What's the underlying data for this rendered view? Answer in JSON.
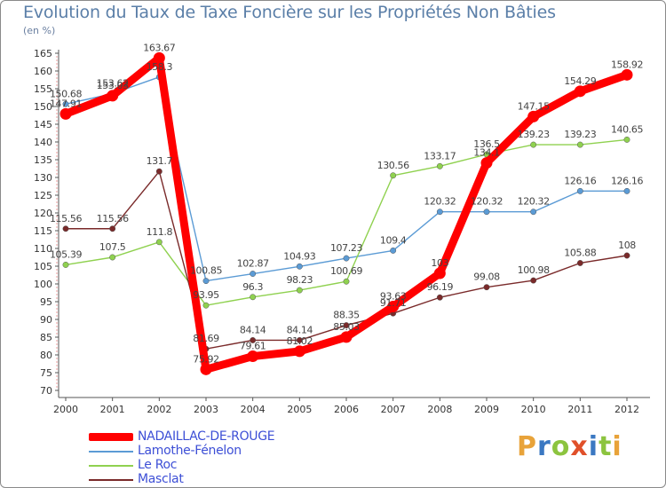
{
  "title": "Evolution du Taux de Taxe Foncière sur les Propriétés Non Bâties",
  "unit": "(en %)",
  "brand": {
    "text": "Proxiti",
    "colors": [
      "#e8a33a",
      "#3b78c2",
      "#8cc43f",
      "#e0502a",
      "#3b78c2",
      "#8cc43f",
      "#e8a33a"
    ]
  },
  "chart_data": {
    "type": "line",
    "title": "Evolution du Taux de Taxe Foncière sur les Propriétés Non Bâties",
    "ylabel": "(en %)",
    "xlabel": "",
    "categories": [
      "2000",
      "2001",
      "2002",
      "2003",
      "2004",
      "2005",
      "2006",
      "2007",
      "2008",
      "2009",
      "2010",
      "2011",
      "2012"
    ],
    "ylim": [
      70,
      165
    ],
    "yticks": [
      70,
      75,
      80,
      85,
      90,
      95,
      100,
      105,
      110,
      115,
      120,
      125,
      130,
      135,
      140,
      145,
      150,
      155,
      160,
      165
    ],
    "grid": false,
    "legend_position": "bottom-left",
    "series": [
      {
        "name": "NADAILLAC-DE-ROUGE",
        "color": "#ff0000",
        "emphasis": true,
        "values": [
          147.91,
          153.03,
          163.67,
          75.92,
          79.61,
          81.02,
          85.03,
          93.63,
          103,
          134.1,
          147.15,
          154.29,
          158.92
        ],
        "labels": [
          "147.91",
          "153.03",
          "163.67",
          "75.92",
          "79.61",
          "81.02",
          "85.03",
          "93.63",
          "103",
          "134.1",
          "147.15",
          "154.29",
          "158.92"
        ]
      },
      {
        "name": "Lamothe-Fénelon",
        "color": "#5b9bd5",
        "emphasis": false,
        "values": [
          150.68,
          153.62,
          158.3,
          100.85,
          102.87,
          104.93,
          107.23,
          109.4,
          120.32,
          120.32,
          120.32,
          126.16,
          126.16
        ],
        "labels": [
          "150.68",
          "153.62",
          "158.3",
          "100.85",
          "102.87",
          "104.93",
          "107.23",
          "109.4",
          "120.32",
          "120.32",
          "120.32",
          "126.16",
          "126.16"
        ]
      },
      {
        "name": "Le Roc",
        "color": "#8fd14f",
        "emphasis": false,
        "values": [
          105.39,
          107.5,
          111.8,
          93.95,
          96.3,
          98.23,
          100.69,
          130.56,
          133.17,
          136.5,
          139.23,
          139.23,
          140.65
        ],
        "labels": [
          "105.39",
          "107.5",
          "111.8",
          "93.95",
          "96.3",
          "98.23",
          "100.69",
          "130.56",
          "133.17",
          "136.5",
          "139.23",
          "139.23",
          "140.65"
        ]
      },
      {
        "name": "Masclat",
        "color": "#7a2a2a",
        "emphasis": false,
        "values": [
          115.56,
          115.56,
          131.7,
          81.69,
          84.14,
          84.14,
          88.35,
          91.71,
          96.19,
          99.08,
          100.98,
          105.88,
          108
        ],
        "labels": [
          "115.56",
          "115.56",
          "131.7",
          "81.69",
          "84.14",
          "84.14",
          "88.35",
          "91.71",
          "96.19",
          "99.08",
          "100.98",
          "105.88",
          "108"
        ]
      }
    ]
  },
  "legend": {
    "items": [
      {
        "label": "NADAILLAC-DE-ROUGE",
        "color": "#ff0000",
        "bold": true
      },
      {
        "label": "Lamothe-Fénelon",
        "color": "#5b9bd5",
        "bold": false
      },
      {
        "label": "Le Roc",
        "color": "#8fd14f",
        "bold": false
      },
      {
        "label": "Masclat",
        "color": "#7a2a2a",
        "bold": false
      }
    ]
  }
}
